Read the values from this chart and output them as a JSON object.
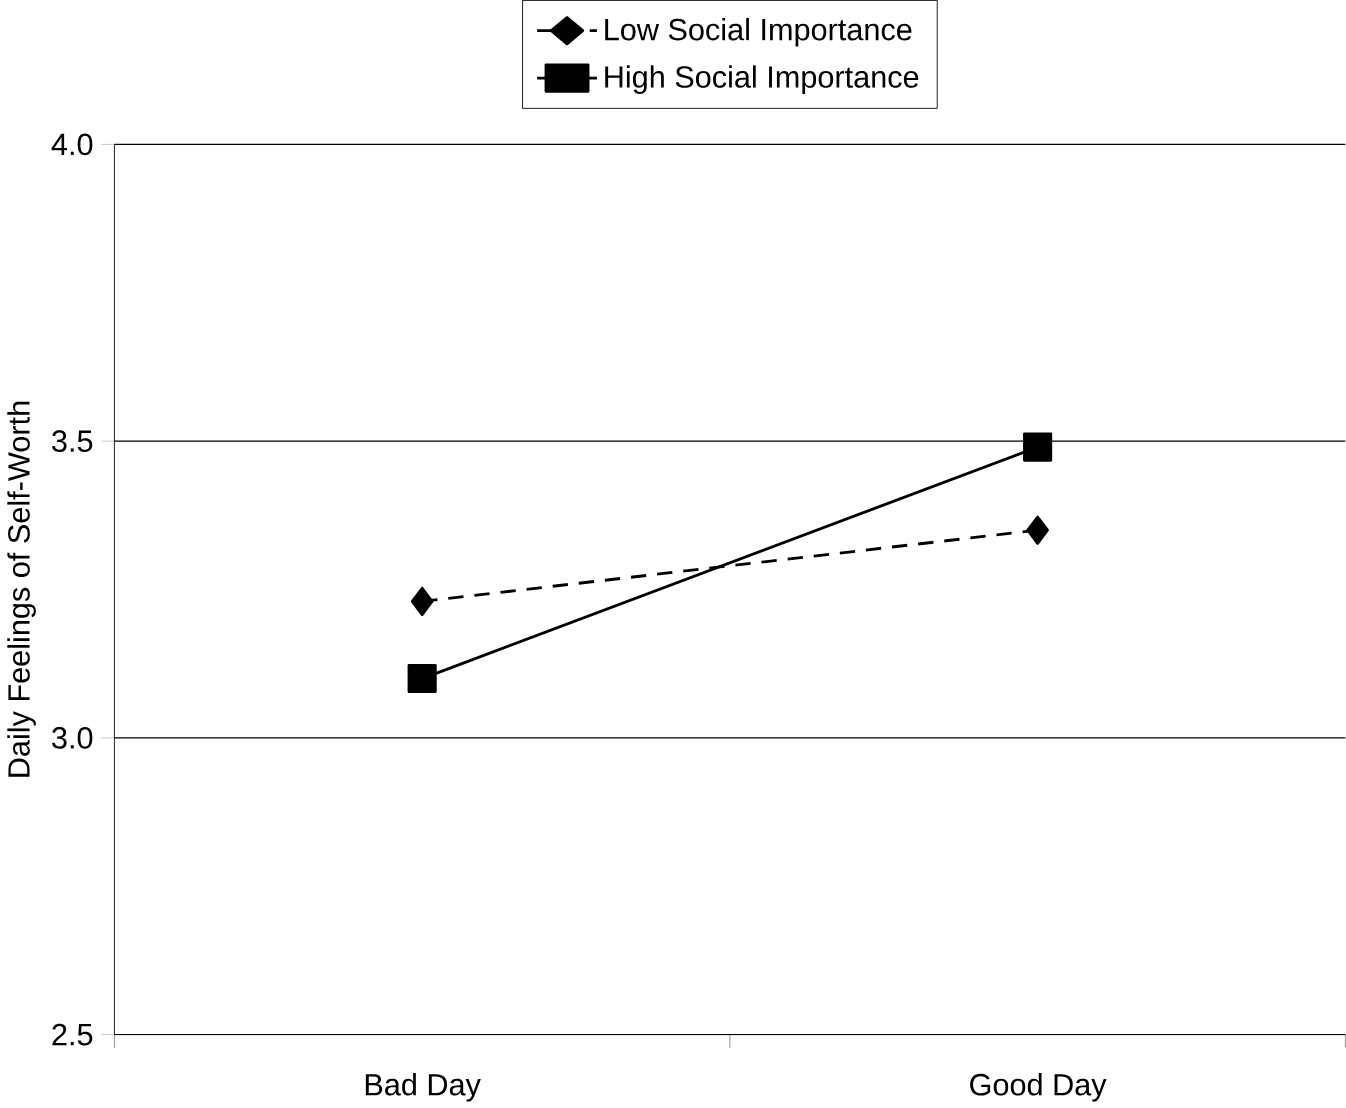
{
  "chart_data": {
    "type": "line",
    "ylabel": "Daily Feelings of Self-Worth",
    "categories": [
      "Bad Day",
      "Good Day"
    ],
    "series": [
      {
        "name": "Low Social Importance",
        "color": "#000000",
        "values": [
          3.23,
          3.35
        ],
        "marker": "diamond",
        "line_style": "dashed"
      },
      {
        "name": "High Social Importance",
        "color": "#000000",
        "values": [
          3.1,
          3.49
        ],
        "marker": "square",
        "line_style": "solid"
      }
    ],
    "ylim": [
      2.5,
      4.0
    ],
    "yticks": [
      {
        "value": 2.5,
        "label": "2.5"
      },
      {
        "value": 3.0,
        "label": "3.0"
      },
      {
        "value": 3.5,
        "label": "3.5"
      },
      {
        "value": 4.0,
        "label": "4.0"
      }
    ],
    "grid": "y",
    "legend": "top"
  }
}
